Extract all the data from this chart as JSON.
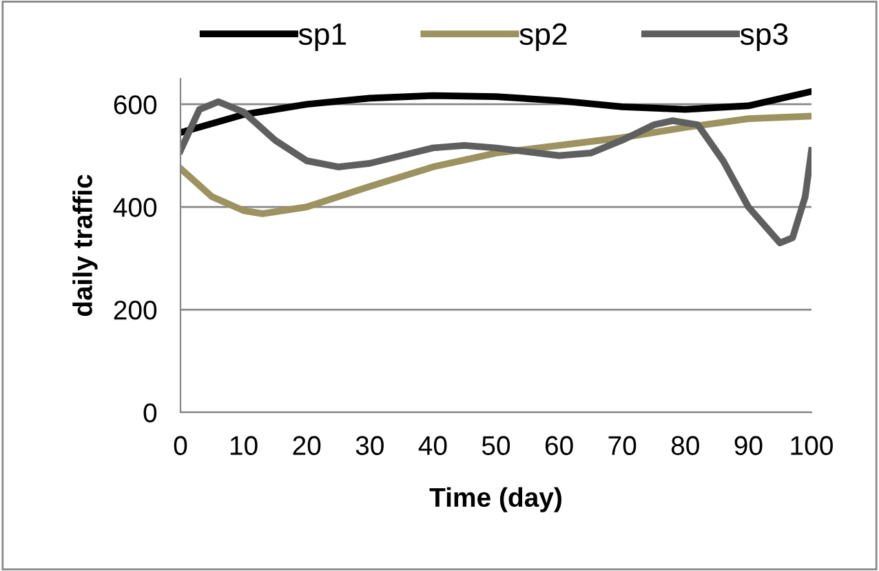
{
  "chart_data": {
    "type": "line",
    "xlabel": "Time (day)",
    "ylabel": "daily traffic",
    "xlim": [
      0,
      100
    ],
    "xticks": [
      0,
      10,
      20,
      30,
      40,
      50,
      60,
      70,
      80,
      90,
      100
    ],
    "ylim": [
      0,
      650
    ],
    "yticks": [
      0,
      200,
      400,
      600
    ],
    "grid": "y",
    "legend": "top",
    "marker": "none",
    "line_style": "solid",
    "series": [
      {
        "name": "sp1",
        "color": "#000000",
        "x": [
          0,
          10,
          20,
          30,
          40,
          50,
          60,
          70,
          80,
          90,
          100
        ],
        "values": [
          545,
          580,
          600,
          612,
          617,
          615,
          607,
          595,
          590,
          597,
          625
        ]
      },
      {
        "name": "sp2",
        "color": "#9c9360",
        "x": [
          0,
          5,
          10,
          13,
          20,
          30,
          40,
          50,
          60,
          70,
          80,
          90,
          100
        ],
        "values": [
          475,
          420,
          393,
          387,
          400,
          440,
          478,
          505,
          520,
          535,
          555,
          572,
          577
        ]
      },
      {
        "name": "sp3",
        "color": "#5f5f5f",
        "x": [
          0,
          3,
          6,
          10,
          15,
          20,
          25,
          30,
          40,
          45,
          50,
          60,
          65,
          70,
          75,
          78,
          82,
          86,
          90,
          95,
          97,
          99,
          100
        ],
        "values": [
          510,
          590,
          605,
          585,
          530,
          490,
          478,
          485,
          515,
          520,
          515,
          500,
          505,
          530,
          560,
          568,
          560,
          490,
          400,
          330,
          340,
          420,
          510
        ]
      }
    ]
  }
}
